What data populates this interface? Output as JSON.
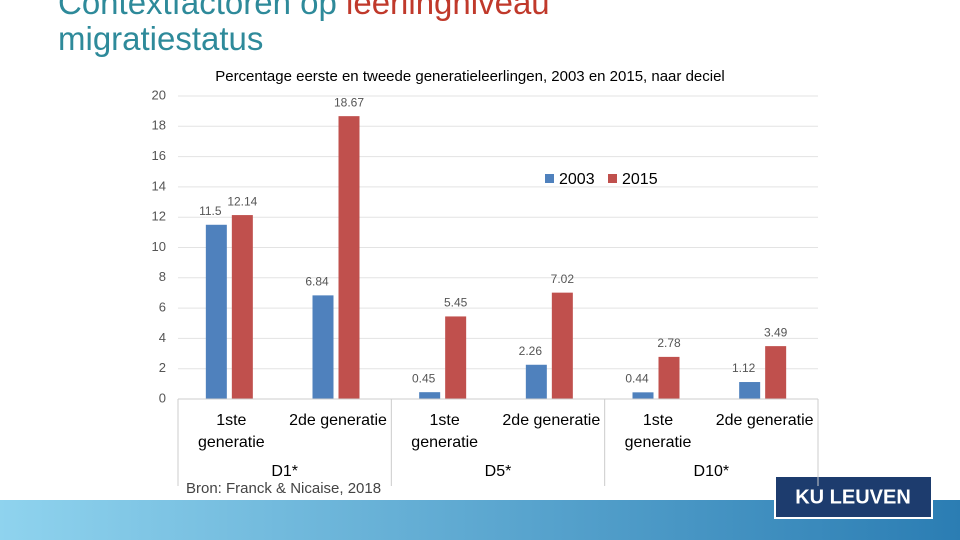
{
  "header": {
    "title_line1_part1": "Contextfactoren op ",
    "title_line1_part2": "leerlingniveau",
    "title_line2": "migratiestatus"
  },
  "chart_data": {
    "type": "bar",
    "title": "Percentage eerste en tweede generatieleerlingen, 2003 en 2015, naar deciel",
    "categories": [
      "1ste generatie",
      "2de generatie",
      "1ste generatie",
      "2de generatie",
      "1ste generatie",
      "2de generatie"
    ],
    "groups": [
      "D1*",
      "D5*",
      "D10*"
    ],
    "series": [
      {
        "name": "2003",
        "color": "#4f81bd",
        "values": [
          11.5,
          6.84,
          0.45,
          2.26,
          0.44,
          1.12
        ]
      },
      {
        "name": "2015",
        "color": "#c0504d",
        "values": [
          12.14,
          18.67,
          5.45,
          7.02,
          2.78,
          3.49
        ]
      }
    ],
    "ylim": [
      0,
      20
    ],
    "yticks": [
      0,
      2,
      4,
      6,
      8,
      10,
      12,
      14,
      16,
      18,
      20
    ],
    "grid": true,
    "legend": true
  },
  "footer": {
    "source": "Bron: Franck & Nicaise, 2018",
    "logo": "KU LEUVEN"
  }
}
